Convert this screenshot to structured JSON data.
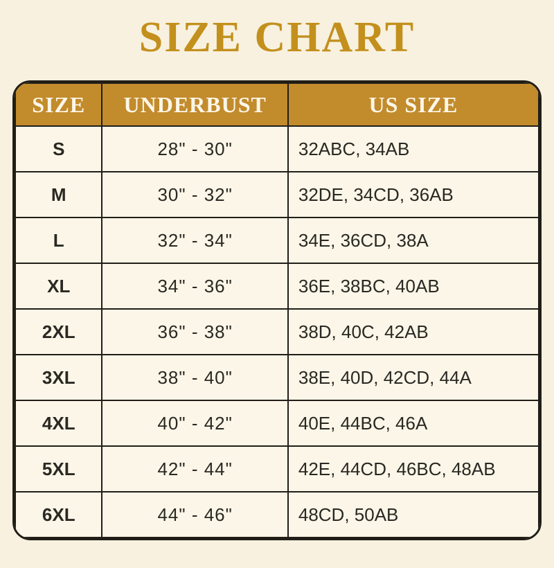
{
  "page": {
    "title": "SIZE CHART"
  },
  "colors": {
    "page_background": "#F8F1DF",
    "cell_background": "#FBF6E8",
    "title_gold": "#C3901D",
    "header_gold": "#C28B2C",
    "header_text": "#FCF6E7",
    "grid_line": "#211E18",
    "body_text": "#2A2822"
  },
  "chart_data": {
    "type": "table",
    "title": "SIZE CHART",
    "columns": [
      "SIZE",
      "UNDERBUST",
      "US SIZE"
    ],
    "rows": [
      [
        "S",
        "28\" - 30\"",
        "32ABC, 34AB"
      ],
      [
        "M",
        "30\" - 32\"",
        "32DE, 34CD, 36AB"
      ],
      [
        "L",
        "32\" - 34\"",
        "34E, 36CD, 38A"
      ],
      [
        "XL",
        "34\" - 36\"",
        "36E, 38BC, 40AB"
      ],
      [
        "2XL",
        "36\" - 38\"",
        "38D, 40C, 42AB"
      ],
      [
        "3XL",
        "38\" - 40\"",
        "38E, 40D, 42CD, 44A"
      ],
      [
        "4XL",
        "40\" - 42\"",
        "40E, 44BC, 46A"
      ],
      [
        "5XL",
        "42\" - 44\"",
        "42E, 44CD, 46BC, 48AB"
      ],
      [
        "6XL",
        "44\" - 46\"",
        "48CD, 50AB"
      ]
    ]
  }
}
